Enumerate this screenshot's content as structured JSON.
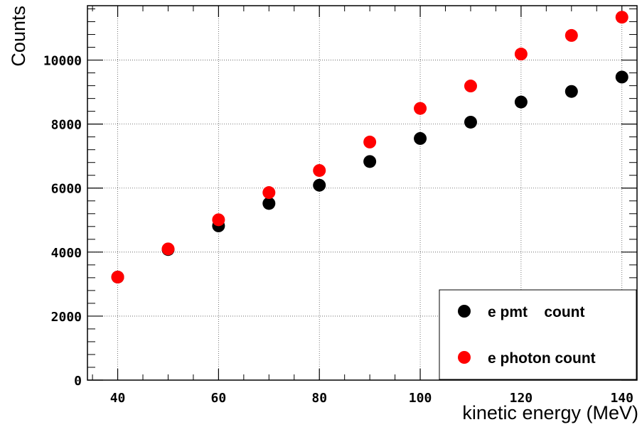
{
  "chart_data": {
    "type": "scatter",
    "xlabel": "kinetic energy (MeV)",
    "ylabel": "Counts",
    "xlim": [
      34,
      143
    ],
    "ylim": [
      0,
      11700
    ],
    "x_ticks": [
      "40",
      "60",
      "80",
      "100",
      "120",
      "140"
    ],
    "y_ticks": [
      "0",
      "2000",
      "4000",
      "6000",
      "8000",
      "10000"
    ],
    "grid": true,
    "legend_position": "bottom-right",
    "series": [
      {
        "name": "e pmt    count",
        "color": "#000000",
        "x": [
          40,
          50,
          60,
          70,
          80,
          90,
          100,
          110,
          120,
          130,
          140
        ],
        "y": [
          3220,
          4080,
          4820,
          5520,
          6090,
          6830,
          7550,
          8060,
          8690,
          9020,
          9470
        ]
      },
      {
        "name": "e photon count",
        "color": "#ff0000",
        "x": [
          40,
          50,
          60,
          70,
          80,
          90,
          100,
          110,
          120,
          130,
          140
        ],
        "y": [
          3220,
          4100,
          5010,
          5860,
          6550,
          7440,
          8490,
          9190,
          10190,
          10770,
          11340
        ]
      }
    ]
  }
}
